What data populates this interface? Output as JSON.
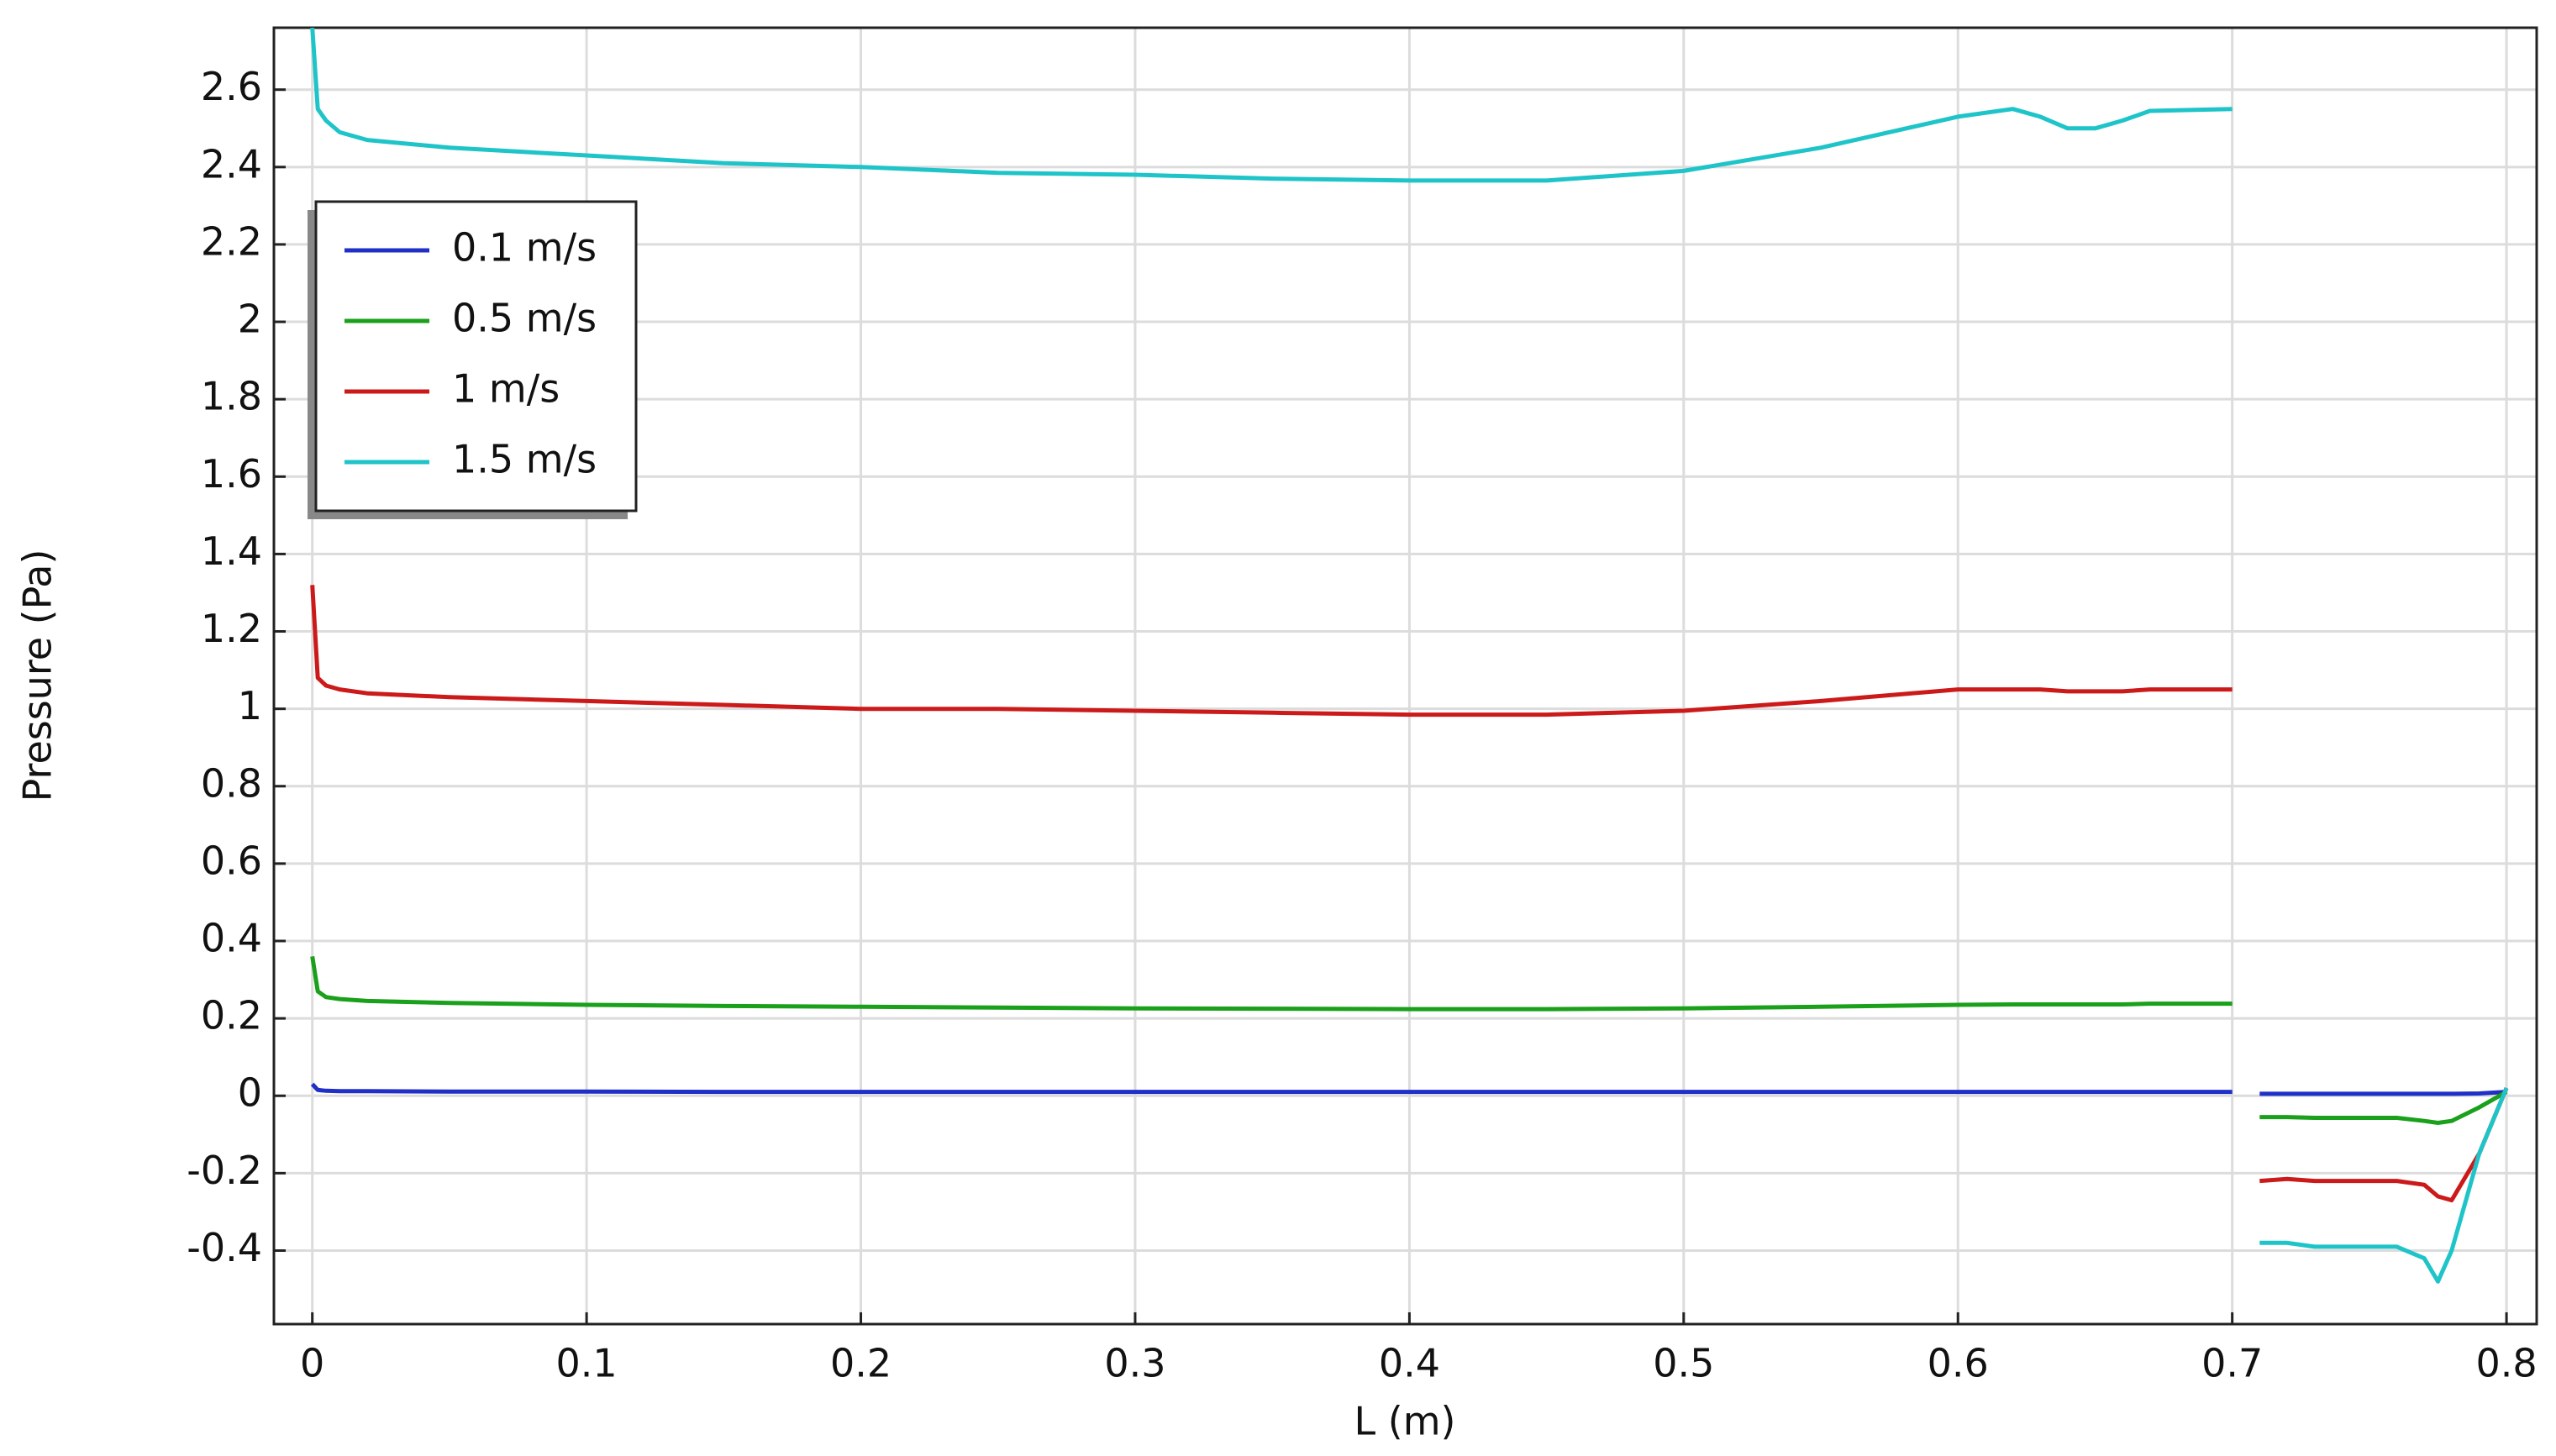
{
  "chart_data": {
    "type": "line",
    "xlabel": "L (m)",
    "ylabel": "Pressure (Pa)",
    "x": [
      0,
      0.002,
      0.005,
      0.01,
      0.02,
      0.05,
      0.1,
      0.15,
      0.2,
      0.25,
      0.3,
      0.35,
      0.4,
      0.45,
      0.5,
      0.55,
      0.6,
      0.62,
      0.63,
      0.64,
      0.65,
      0.66,
      0.67,
      0.7,
      0.705,
      0.71,
      0.72,
      0.73,
      0.74,
      0.75,
      0.76,
      0.77,
      0.775,
      0.78,
      0.79,
      0.8
    ],
    "series": [
      {
        "name": "0.1 m/s",
        "color": "#1f2fc8",
        "values": [
          0.03,
          0.015,
          0.013,
          0.012,
          0.012,
          0.011,
          0.011,
          0.01,
          0.01,
          0.01,
          0.01,
          0.01,
          0.01,
          0.01,
          0.01,
          0.01,
          0.01,
          0.01,
          0.01,
          0.01,
          0.01,
          0.01,
          0.01,
          0.01,
          null,
          0.005,
          0.005,
          0.005,
          0.005,
          0.005,
          0.005,
          0.005,
          0.005,
          0.005,
          0.006,
          0.01
        ]
      },
      {
        "name": "0.5 m/s",
        "color": "#1aa01a",
        "values": [
          0.36,
          0.27,
          0.255,
          0.25,
          0.245,
          0.24,
          0.235,
          0.232,
          0.23,
          0.228,
          0.226,
          0.225,
          0.224,
          0.224,
          0.226,
          0.23,
          0.235,
          0.236,
          0.236,
          0.236,
          0.236,
          0.236,
          0.238,
          0.238,
          null,
          -0.055,
          -0.055,
          -0.057,
          -0.057,
          -0.057,
          -0.057,
          -0.065,
          -0.07,
          -0.065,
          -0.03,
          0.01
        ]
      },
      {
        "name": "1 m/s",
        "color": "#cc1a1a",
        "values": [
          1.32,
          1.08,
          1.06,
          1.05,
          1.04,
          1.03,
          1.02,
          1.01,
          1.0,
          1.0,
          0.995,
          0.99,
          0.985,
          0.985,
          0.995,
          1.02,
          1.05,
          1.05,
          1.05,
          1.045,
          1.045,
          1.045,
          1.05,
          1.05,
          null,
          -0.22,
          -0.215,
          -0.22,
          -0.22,
          -0.22,
          -0.22,
          -0.23,
          -0.26,
          -0.27,
          -0.15,
          0.02
        ]
      },
      {
        "name": "1.5 m/s",
        "color": "#1ec4c8",
        "values": [
          2.76,
          2.55,
          2.52,
          2.49,
          2.47,
          2.45,
          2.43,
          2.41,
          2.4,
          2.385,
          2.38,
          2.37,
          2.365,
          2.365,
          2.39,
          2.45,
          2.53,
          2.55,
          2.53,
          2.5,
          2.5,
          2.52,
          2.545,
          2.55,
          null,
          -0.38,
          -0.38,
          -0.39,
          -0.39,
          -0.39,
          -0.39,
          -0.42,
          -0.48,
          -0.4,
          -0.15,
          0.02
        ]
      }
    ],
    "xlim": [
      -0.014,
      0.811
    ],
    "xticks": [
      0,
      0.1,
      0.2,
      0.3,
      0.4,
      0.5,
      0.6,
      0.7,
      0.8
    ],
    "ylim": [
      -0.59,
      2.76
    ],
    "yticks": [
      -0.4,
      -0.2,
      0,
      0.2,
      0.4,
      0.6,
      0.8,
      1,
      1.2,
      1.4,
      1.6,
      1.8,
      2,
      2.2,
      2.4,
      2.6
    ],
    "grid": true,
    "legend": "upper-left"
  }
}
